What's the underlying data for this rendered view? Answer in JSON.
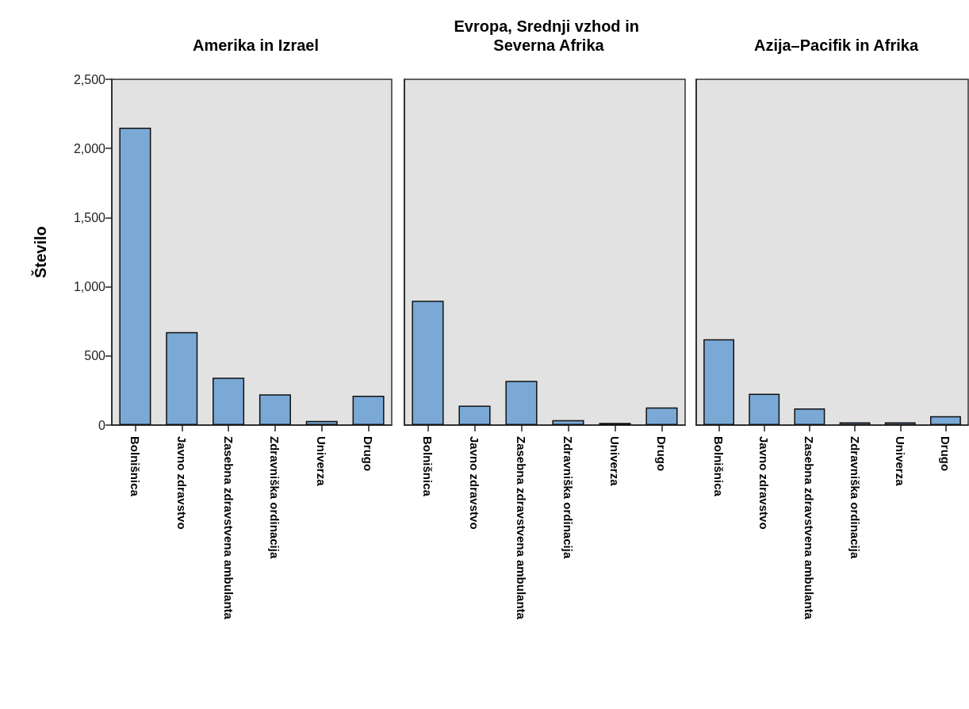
{
  "chart_data": [
    {
      "type": "bar",
      "title": "Amerika in Izrael",
      "ylabel": "Število",
      "categories": [
        "Bolnišnica",
        "Javno zdravstvo",
        "Zasebna zdravstvena ambulanta",
        "Zdravniška ordinacija",
        "Univerza",
        "Drugo"
      ],
      "values": [
        2150,
        673,
        343,
        222,
        30,
        212
      ],
      "color": "#7aa9d6",
      "ylim": [
        0,
        2500
      ],
      "yticks": [
        0,
        500,
        {
          "value": 1000,
          "label": "1,000"
        },
        {
          "value": 1500,
          "label": "1,500"
        },
        {
          "value": 2000,
          "label": "2,000"
        },
        {
          "value": 2500,
          "label": "2,500"
        }
      ],
      "grid": false
    },
    {
      "type": "bar",
      "title": "Evropa, Srednji vzhod in Severna Afrika",
      "categories": [
        "Bolnišnica",
        "Javno zdravstvo",
        "Zasebna zdravstvena ambulanta",
        "Zdravniška ordinacija",
        "Univerza",
        "Drugo"
      ],
      "values": [
        899,
        141,
        319,
        36,
        16,
        127
      ],
      "color": "#7aa9d6",
      "ylim": [
        0,
        2500
      ],
      "yticks": [
        0,
        500,
        1000,
        1500,
        2000,
        2500
      ],
      "grid": false,
      "tick_labels": "x"
    },
    {
      "type": "bar",
      "title": "Azija–Pacifik in Afrika",
      "categories": [
        "Bolnišnica",
        "Javno zdravstvo",
        "Zasebna zdravstvena ambulanta",
        "Zdravniška ordinacija",
        "Univerza",
        "Drugo"
      ],
      "values": [
        620,
        226,
        121,
        20,
        20,
        64
      ],
      "color": "#7aa9d6",
      "ylim": [
        0,
        2500
      ],
      "yticks": [
        0,
        500,
        1000,
        1500,
        2000,
        2500
      ],
      "grid": false,
      "tick_labels": "x"
    }
  ]
}
